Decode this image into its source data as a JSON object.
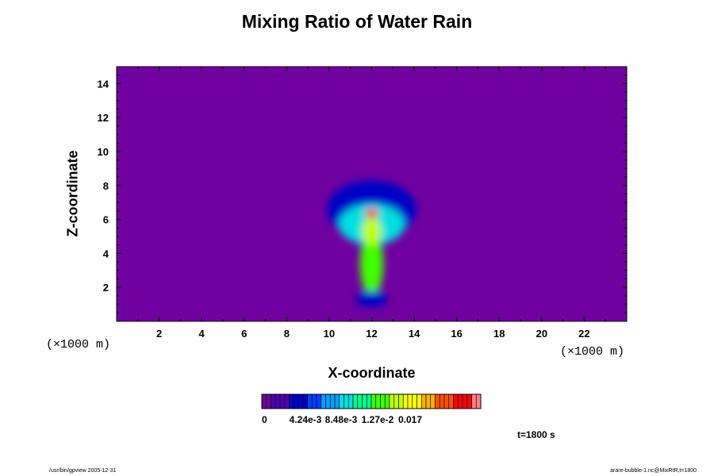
{
  "chart_data": {
    "type": "heatmap",
    "title": "Mixing Ratio of Water Rain",
    "xlabel": "X-coordinate",
    "ylabel": "Z-coordinate",
    "x_unit": "(×1000 m)",
    "y_unit": "(×1000 m)",
    "xlim": [
      0,
      24
    ],
    "ylim": [
      0,
      15
    ],
    "x_ticks": [
      "2",
      "4",
      "6",
      "8",
      "10",
      "12",
      "14",
      "16",
      "18",
      "20",
      "22"
    ],
    "y_ticks": [
      "2",
      "4",
      "6",
      "8",
      "10",
      "12",
      "14"
    ],
    "background_value": 0,
    "colorbar": {
      "labels": [
        "0",
        "4.24e-3",
        "8.48e-3",
        "1.27e-2",
        "0.017"
      ],
      "min": 0,
      "max": 0.0212,
      "colors": [
        "#7000a0",
        "#5000b0",
        "#0000c8",
        "#0040ff",
        "#00a0ff",
        "#00e0e0",
        "#00ff90",
        "#40ff00",
        "#c0ff00",
        "#ffff00",
        "#ffb000",
        "#ff5000",
        "#ff0000",
        "#ff8080"
      ]
    },
    "features": [
      {
        "name": "anvil canopy",
        "x": 12,
        "z": 6.6,
        "rx": 2.1,
        "rz": 1.7,
        "value": 0.0025
      },
      {
        "name": "cloud body",
        "x": 12,
        "z": 5.7,
        "rx": 1.55,
        "rz": 1.2,
        "value": 0.0075
      },
      {
        "name": "stem",
        "x": 12,
        "z": 3.4,
        "rx": 0.55,
        "rz": 1.9,
        "value": 0.011
      },
      {
        "name": "core",
        "x": 12,
        "z": 5.3,
        "rx": 0.45,
        "rz": 0.8,
        "value": 0.013
      },
      {
        "name": "maximum",
        "x": 12,
        "z": 6.35,
        "rx": 0.3,
        "rz": 0.28,
        "value": 0.02
      },
      {
        "name": "base",
        "x": 12,
        "z": 1.3,
        "rx": 0.75,
        "rz": 0.45,
        "value": 0.0025
      }
    ],
    "annotation": "t=1800 s"
  },
  "footer": {
    "left": "/usr/bin/gpview 2005-12-31",
    "right": "arare-bubble-1.nc@MixRtR,t=1800"
  }
}
